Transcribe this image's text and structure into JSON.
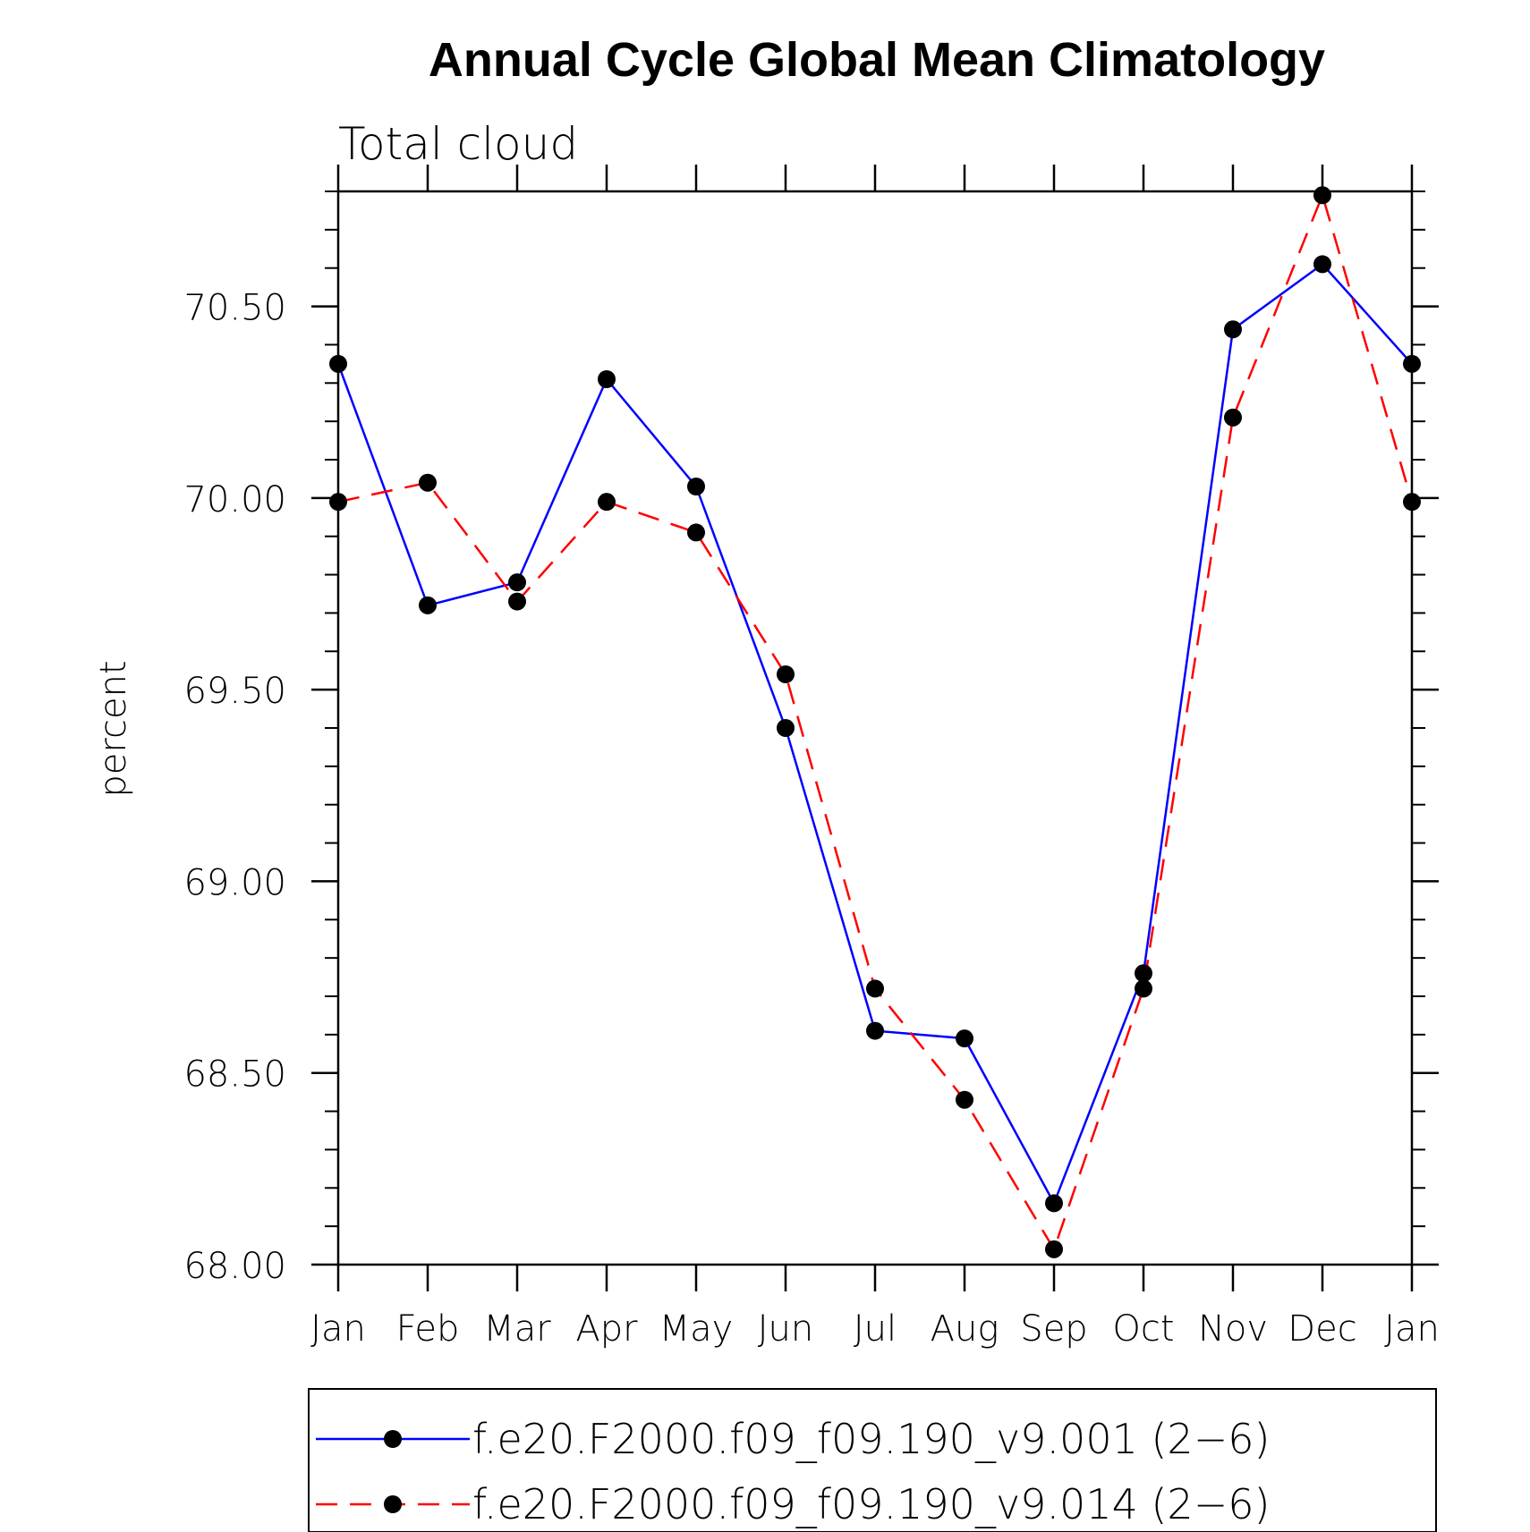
{
  "chart_data": {
    "type": "line",
    "title": "Annual Cycle Global Mean Climatology",
    "subtitle": "Total cloud",
    "ylabel": "percent",
    "xlabel": "",
    "ylim": [
      68.0,
      70.8
    ],
    "yticks": [
      68.0,
      68.5,
      69.0,
      69.5,
      70.0,
      70.5
    ],
    "ytick_labels": [
      "68.00",
      "68.50",
      "69.00",
      "69.50",
      "70.00",
      "70.50"
    ],
    "categories": [
      "Jan",
      "Feb",
      "Mar",
      "Apr",
      "May",
      "Jun",
      "Jul",
      "Aug",
      "Sep",
      "Oct",
      "Nov",
      "Dec",
      "Jan"
    ],
    "legend_position": "bottom",
    "series": [
      {
        "name": "f.e20.F2000.f09_f09.190_v9.001 (2−6)",
        "color": "#0000ff",
        "style": "solid",
        "values": [
          70.35,
          69.72,
          69.78,
          70.31,
          70.03,
          69.4,
          68.61,
          68.59,
          68.16,
          68.76,
          70.44,
          70.61,
          70.35
        ]
      },
      {
        "name": "f.e20.F2000.f09_f09.190_v9.014 (2−6)",
        "color": "#ff0000",
        "style": "dashed",
        "values": [
          69.99,
          70.04,
          69.73,
          69.99,
          69.91,
          69.54,
          68.72,
          68.43,
          68.04,
          68.72,
          70.21,
          70.79,
          69.99
        ]
      }
    ]
  }
}
